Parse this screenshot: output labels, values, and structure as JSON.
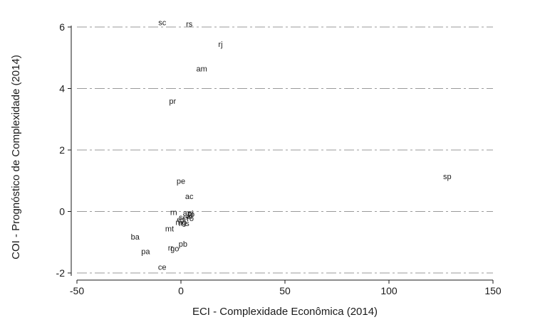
{
  "chart_data": {
    "type": "scatter",
    "title": "",
    "xlabel": "ECI - Complexidade Econômica (2014)",
    "ylabel": "COI - Prognóstico de Complexidade (2014)",
    "xlim": [
      -50,
      150
    ],
    "ylim": [
      -2,
      6
    ],
    "xticks": [
      -50,
      0,
      50,
      100,
      150
    ],
    "yticks": [
      -2,
      0,
      2,
      4,
      6
    ],
    "grid": "horizontal dash-dot",
    "marker": "text label",
    "colors": {
      "text": "#1a1a1a",
      "grid": "#9a9a9a",
      "axis": "#1a1a1a"
    },
    "points": [
      {
        "label": "sc",
        "x": -9,
        "y": 6.15
      },
      {
        "label": "rs",
        "x": 4,
        "y": 6.1
      },
      {
        "label": "rj",
        "x": 19,
        "y": 5.45
      },
      {
        "label": "am",
        "x": 10,
        "y": 4.65
      },
      {
        "label": "pr",
        "x": -4,
        "y": 3.6
      },
      {
        "label": "sp",
        "x": 128,
        "y": 1.15
      },
      {
        "label": "pe",
        "x": 0,
        "y": 1.0
      },
      {
        "label": "ac",
        "x": 4,
        "y": 0.5
      },
      {
        "label": "rn",
        "x": -3.5,
        "y": -0.02
      },
      {
        "label": "ap",
        "x": 3,
        "y": -0.05
      },
      {
        "label": "pi",
        "x": 4.5,
        "y": -0.06
      },
      {
        "label": "to",
        "x": 5,
        "y": -0.08
      },
      {
        "label": "se",
        "x": 1,
        "y": -0.18
      },
      {
        "label": "al",
        "x": 4,
        "y": -0.15
      },
      {
        "label": "es",
        "x": 0,
        "y": -0.25
      },
      {
        "label": "ro",
        "x": 4.5,
        "y": -0.22
      },
      {
        "label": "ms",
        "x": 1.5,
        "y": -0.38
      },
      {
        "label": "mg",
        "x": 0,
        "y": -0.35
      },
      {
        "label": "mt",
        "x": -5.5,
        "y": -0.55
      },
      {
        "label": "ba",
        "x": -22,
        "y": -0.82
      },
      {
        "label": "pb",
        "x": 1,
        "y": -1.05
      },
      {
        "label": "rr",
        "x": -5,
        "y": -1.18
      },
      {
        "label": "go",
        "x": -3,
        "y": -1.2
      },
      {
        "label": "pa",
        "x": -17,
        "y": -1.3
      },
      {
        "label": "ce",
        "x": -9,
        "y": -1.8
      }
    ]
  }
}
